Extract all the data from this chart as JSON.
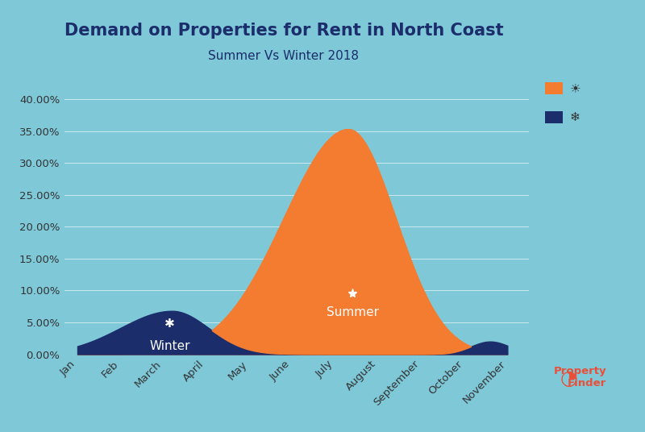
{
  "title": "Demand on Properties for Rent in North Coast",
  "subtitle": "Summer Vs Winter 2018",
  "background_color": "#7ec8d8",
  "plot_bg_color": "#7ec8d8",
  "summer_color": "#f47c30",
  "winter_color": "#1b2d6b",
  "months": [
    "Jan",
    "Feb",
    "March",
    "April",
    "May",
    "June",
    "July",
    "August",
    "September",
    "October",
    "November"
  ],
  "ylabel_values": [
    "0.00%",
    "5.00%",
    "10.00%",
    "15.00%",
    "20.00%",
    "25.00%",
    "30.00%",
    "35.00%",
    "40.00%"
  ],
  "ylim": [
    0,
    0.42
  ],
  "title_color": "#1b2d6b",
  "label_summer": "Summer",
  "label_winter": "Winter",
  "propertyfinder_color": "#e8503a"
}
